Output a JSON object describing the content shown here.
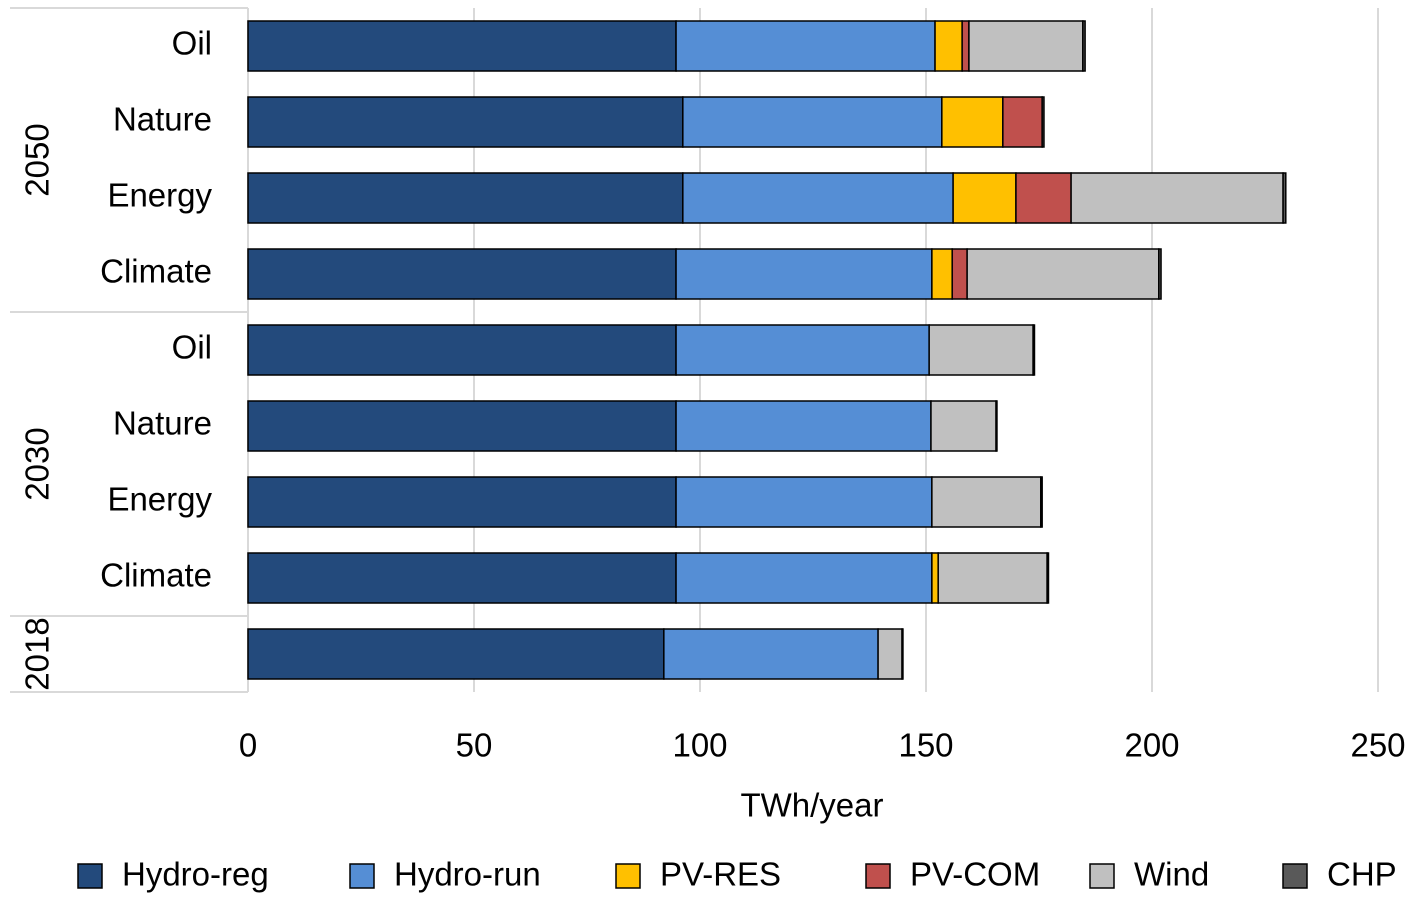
{
  "chart_data": {
    "type": "bar",
    "orientation": "horizontal",
    "stacked": true,
    "xlabel": "TWh/year",
    "categories": [
      "Oil",
      "Nature",
      "Energy",
      "Climate",
      "Oil",
      "Nature",
      "Energy",
      "Climate",
      null
    ],
    "groups": [
      {
        "name": "2050",
        "size": 4
      },
      {
        "name": "2030",
        "size": 4
      },
      {
        "name": "2018",
        "size": 1
      }
    ],
    "series": [
      {
        "name": "Hydro-reg",
        "color": "#234a7c",
        "values": [
          94.7,
          96.2,
          96.2,
          94.7,
          94.7,
          94.7,
          94.7,
          94.7,
          92.0
        ]
      },
      {
        "name": "Hydro-run",
        "color": "#558ed5",
        "values": [
          57.3,
          57.3,
          59.8,
          56.6,
          56.0,
          56.4,
          56.6,
          56.6,
          47.4
        ]
      },
      {
        "name": "PV-RES",
        "color": "#ffc000",
        "values": [
          6.0,
          13.5,
          13.9,
          4.5,
          0,
          0,
          0,
          1.4,
          0
        ]
      },
      {
        "name": "PV-COM",
        "color": "#c0504d",
        "values": [
          1.5,
          8.7,
          12.2,
          3.3,
          0,
          0,
          0,
          0,
          0
        ]
      },
      {
        "name": "Wind",
        "color": "#c0c0c0",
        "values": [
          25.2,
          0,
          46.9,
          42.4,
          23.0,
          14.4,
          24.1,
          24.1,
          5.3
        ]
      },
      {
        "name": "CHP",
        "color": "#595959",
        "values": [
          0.5,
          0.4,
          0.6,
          0.5,
          0.3,
          0.2,
          0.3,
          0.3,
          0.2
        ]
      }
    ],
    "xlim": [
      0,
      250
    ],
    "xticks": [
      0,
      50,
      100,
      150,
      200,
      250
    ],
    "grid": true,
    "legend": "bottom"
  }
}
